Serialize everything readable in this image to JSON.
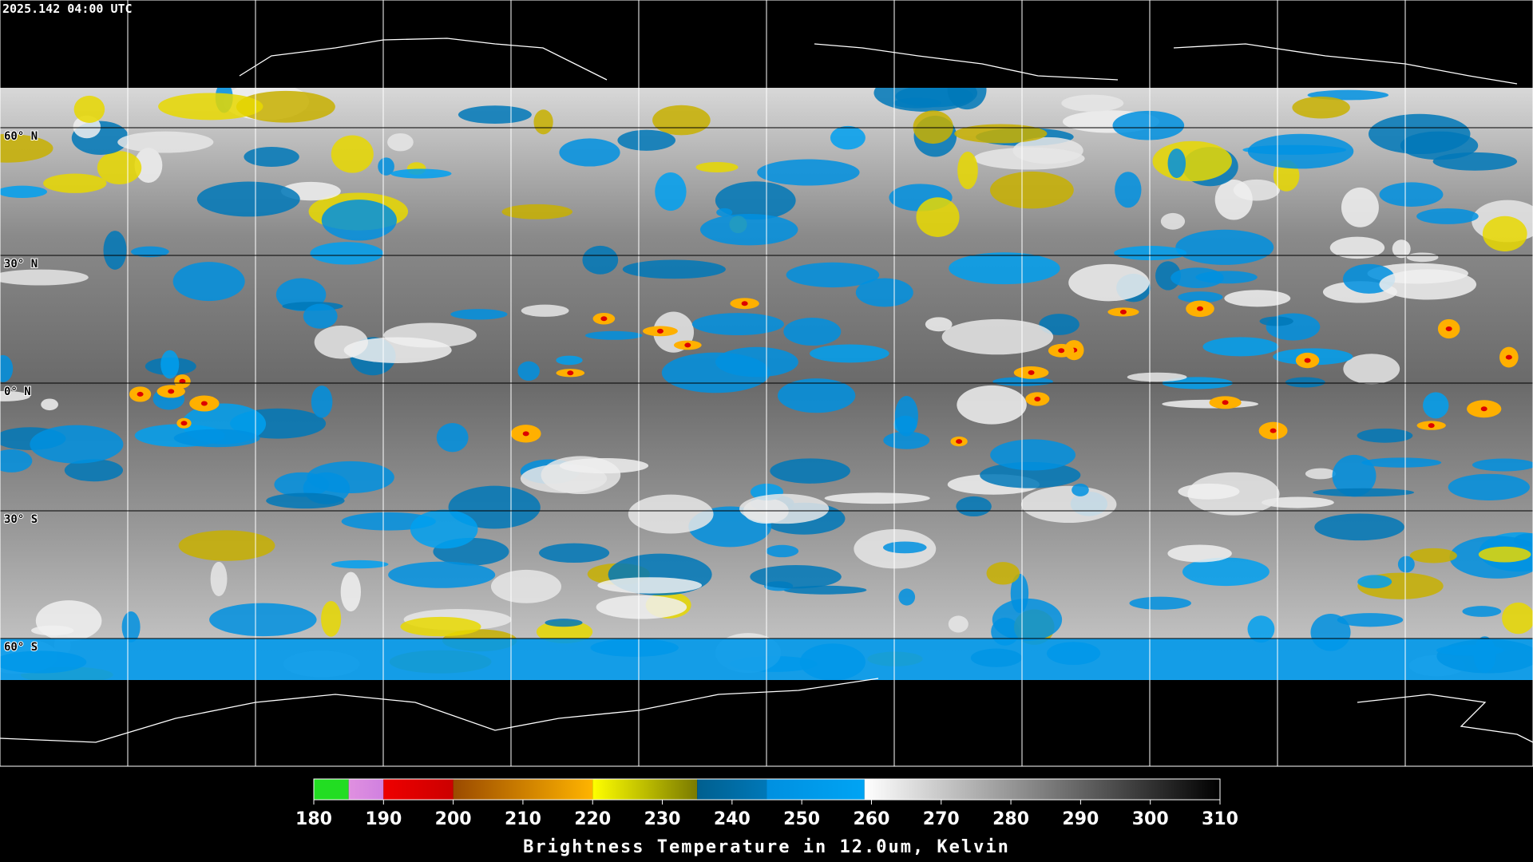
{
  "header": {
    "timestamp": "2025.142 04:00 UTC"
  },
  "map": {
    "latitude_lines": [
      {
        "lat": 60,
        "label": "60° N"
      },
      {
        "lat": 30,
        "label": "30° N"
      },
      {
        "lat": 0,
        "label": "0° N"
      },
      {
        "lat": -30,
        "label": "30° S"
      },
      {
        "lat": -60,
        "label": "60° S"
      }
    ]
  },
  "colorbar": {
    "title": "Brightness Temperature in 12.0um, Kelvin",
    "range": [
      180,
      310
    ],
    "ticks": [
      180,
      190,
      200,
      210,
      220,
      230,
      240,
      250,
      260,
      270,
      280,
      290,
      300,
      310
    ],
    "segments": [
      {
        "from": 180,
        "to": 185,
        "colors": [
          "#22dd22",
          "#22dd22"
        ]
      },
      {
        "from": 185,
        "to": 190,
        "colors": [
          "#e090e0",
          "#d080e0"
        ]
      },
      {
        "from": 190,
        "to": 200,
        "colors": [
          "#ee0000",
          "#cc0000"
        ]
      },
      {
        "from": 200,
        "to": 220,
        "colors": [
          "#9a4a00",
          "#ffb400"
        ]
      },
      {
        "from": 220,
        "to": 235,
        "colors": [
          "#ffff00",
          "#7a7a00"
        ]
      },
      {
        "from": 235,
        "to": 245,
        "colors": [
          "#005f8f",
          "#0078b8"
        ]
      },
      {
        "from": 245,
        "to": 259,
        "colors": [
          "#0090e0",
          "#00a4f4"
        ]
      },
      {
        "from": 259,
        "to": 310,
        "colors": [
          "#ffffff",
          "#000000"
        ]
      }
    ]
  }
}
